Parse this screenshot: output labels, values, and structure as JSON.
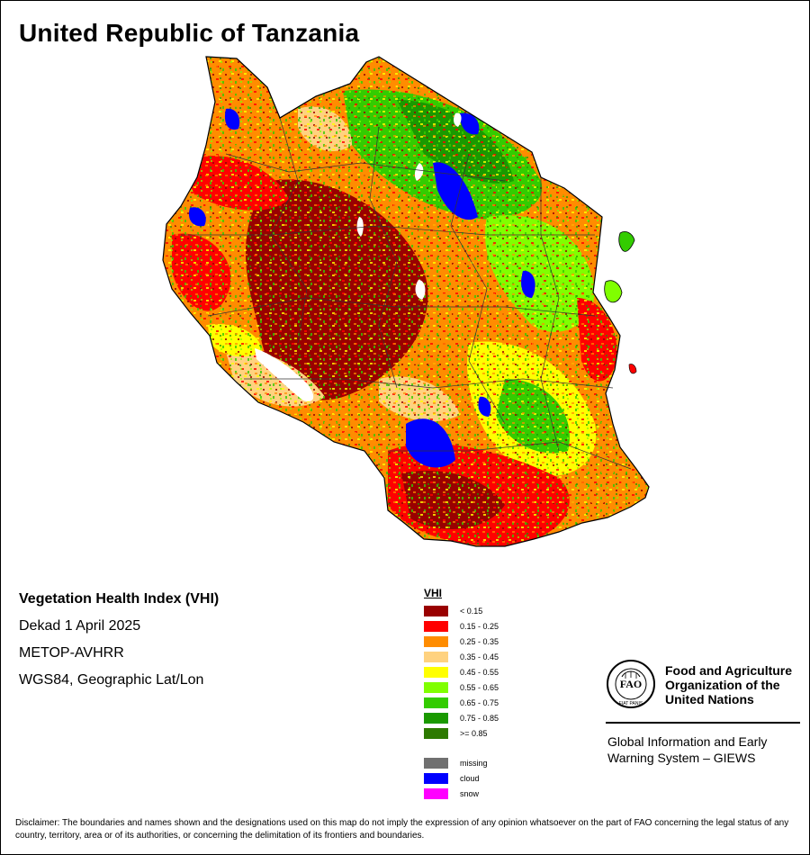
{
  "title": "United Republic of Tanzania",
  "info": {
    "line1": "Vegetation Health Index (VHI)",
    "line2": "Dekad 1 April 2025",
    "line3": "METOP-AVHRR",
    "line4": "WGS84, Geographic Lat/Lon"
  },
  "legend": {
    "title": "VHI",
    "classes": [
      {
        "label": "< 0.15",
        "color": "#990000"
      },
      {
        "label": "0.15 - 0.25",
        "color": "#ff0000"
      },
      {
        "label": "0.25 - 0.35",
        "color": "#ff8c00"
      },
      {
        "label": "0.35 - 0.45",
        "color": "#ffd27f"
      },
      {
        "label": "0.45 - 0.55",
        "color": "#ffff00"
      },
      {
        "label": "0.55 - 0.65",
        "color": "#80ff00"
      },
      {
        "label": "0.65 - 0.75",
        "color": "#33cc00"
      },
      {
        "label": "0.75 - 0.85",
        "color": "#1a9900"
      },
      {
        "label": ">= 0.85",
        "color": "#2d7a00"
      }
    ],
    "extra": [
      {
        "label": "missing",
        "color": "#707070"
      },
      {
        "label": "cloud",
        "color": "#0000ff"
      },
      {
        "label": "snow",
        "color": "#ff00ff"
      }
    ]
  },
  "fao": {
    "org_line1": "Food and Agriculture",
    "org_line2": "Organization of the",
    "org_line3": "United Nations",
    "giews_line1": "Global Information and Early",
    "giews_line2": "Warning System – GIEWS",
    "logo_text": "FAO",
    "logo_ring_text": "FIAT PANIS",
    "icon": "fao-logo-icon"
  },
  "disclaimer": "Disclaimer: The boundaries and names shown and the designations used on this map do not imply the expression of any opinion whatsoever on the part of FAO concerning the legal status of any country, territory, area or of its authorities, or concerning the delimitation of its frontiers and boundaries."
}
